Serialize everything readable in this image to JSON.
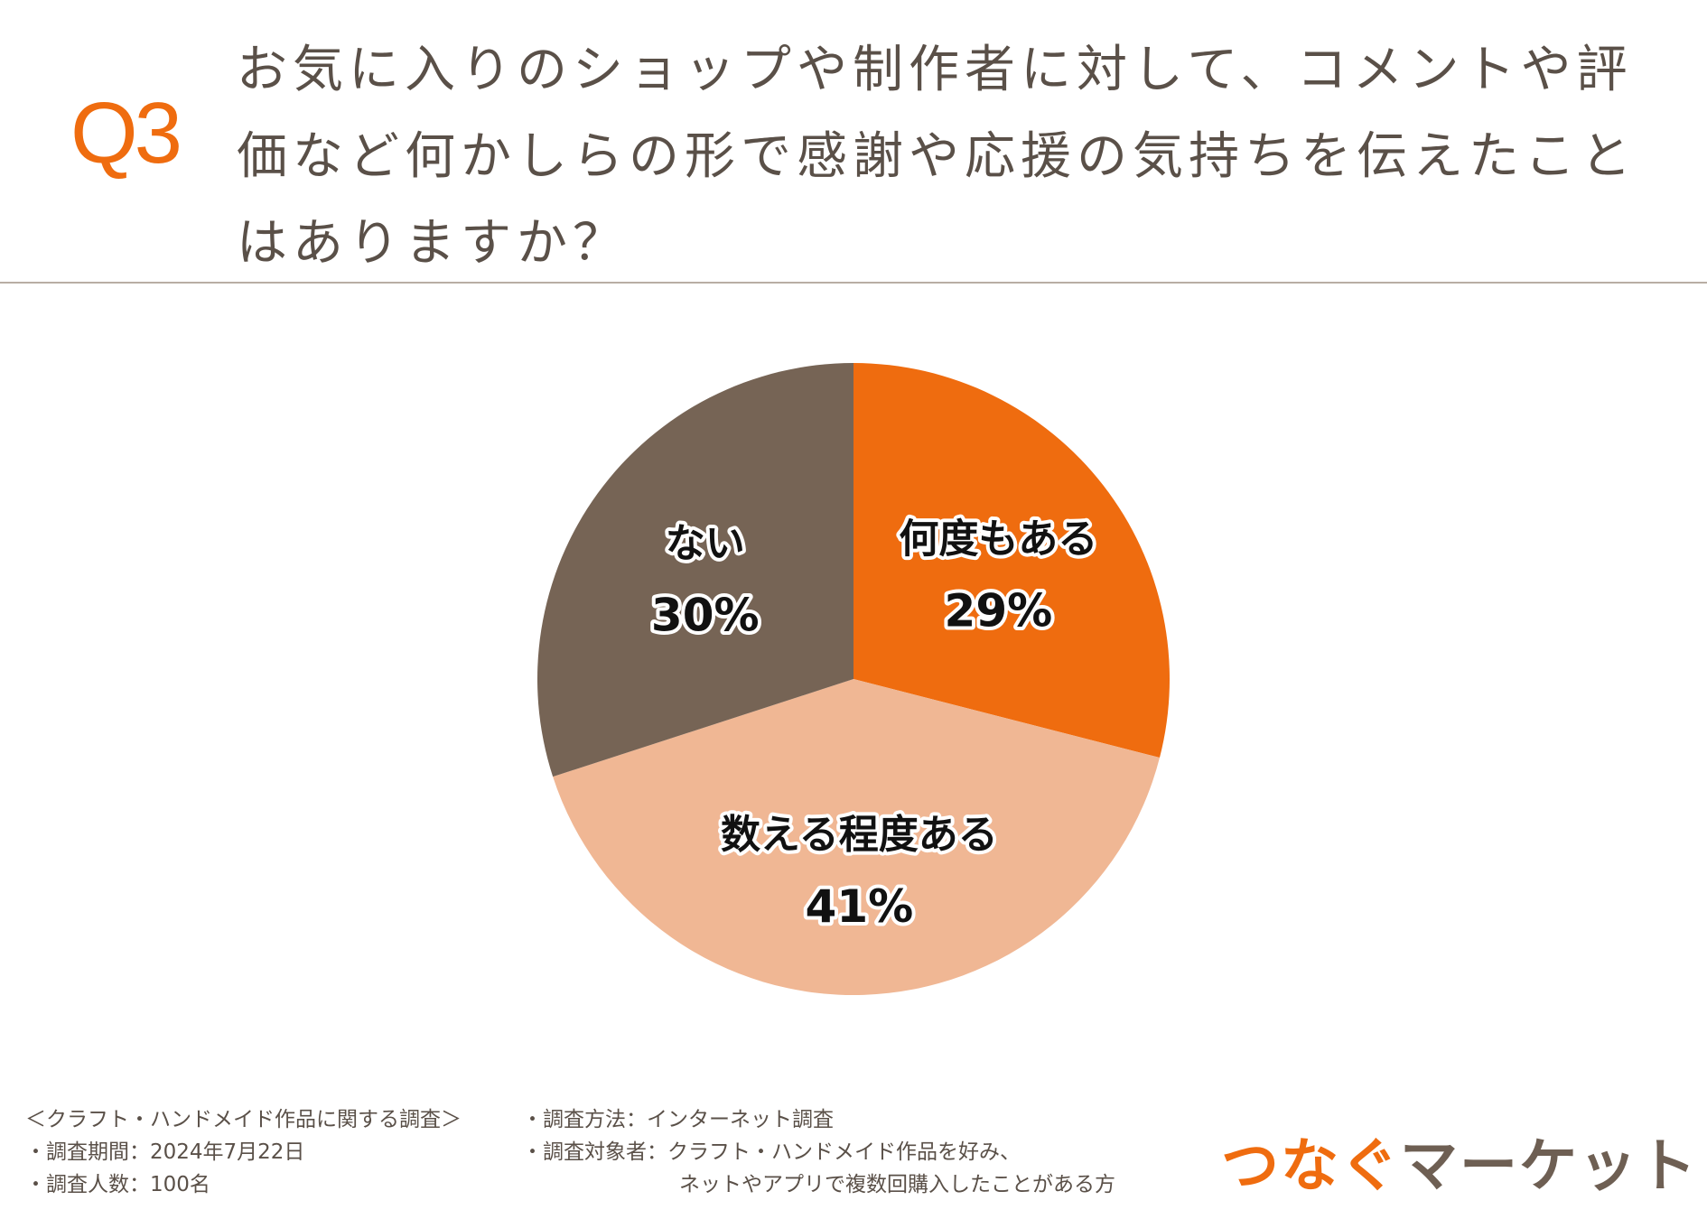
{
  "header": {
    "q_label": "Q3",
    "question": "お気に入りのショップや制作者に対して、コメントや評価など何かしらの形で感謝や応援の気持ちを伝えたことはありますか？"
  },
  "chart_data": {
    "type": "pie",
    "title": "",
    "slices": [
      {
        "label": "何度もある",
        "value": 29,
        "display": "29%",
        "color": "#ef6c0f"
      },
      {
        "label": "数える程度ある",
        "value": 41,
        "display": "41%",
        "color": "#f0b794"
      },
      {
        "label": "ない",
        "value": 30,
        "display": "30%",
        "color": "#766455"
      }
    ],
    "start": "12 o'clock",
    "direction": "clockwise",
    "labels_inside": true
  },
  "footer": {
    "survey_name": "＜クラフト・ハンドメイド作品に関する調査＞",
    "period": "・調査期間：2024年7月22日",
    "sample": "・調査人数：100名",
    "method": "・調査方法：インターネット調査",
    "target_1": "・調査対象者：クラフト・ハンドメイド作品を好み、",
    "target_2": "ネットやアプリで複数回購入したことがある方"
  },
  "logo": {
    "part_a": "つなぐ",
    "part_b": "マーケット",
    "color_a": "#ef6c0f",
    "color_b": "#6e5f53"
  }
}
